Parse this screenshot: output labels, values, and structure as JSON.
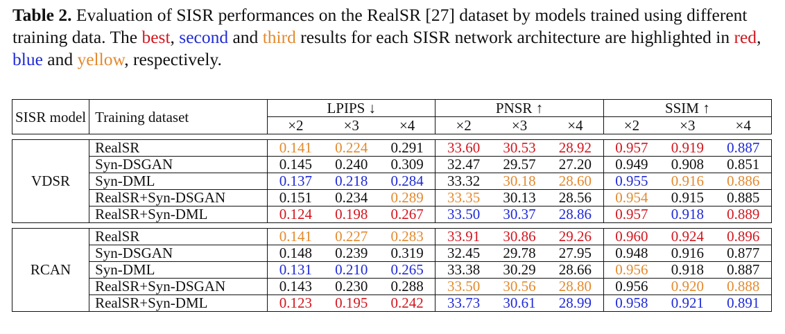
{
  "caption": {
    "label": "Table 2.",
    "text_1": " Evaluation of SISR performances on the RealSR [27] dataset by models trained using different training data. The ",
    "best": "best",
    "text_2": ", ",
    "second": "second",
    "text_3": " and ",
    "third": "third",
    "text_4": " results for each SISR network architecture are highlighted in ",
    "red": "red",
    "text_5": ", ",
    "blue": "blue",
    "text_6": " and ",
    "yellow": "yellow",
    "text_7": ", respectively."
  },
  "colors": {
    "red": "#d2161e",
    "blue": "#1f2ad6",
    "orange": "#e38a2e",
    "black": "#111111"
  },
  "header": {
    "sisr_model": "SISR model",
    "training_dataset": "Training dataset",
    "lpips": "LPIPS ↓",
    "psnr": "PNSR ↑",
    "ssim": "SSIM ↑",
    "scales": [
      "×2",
      "×3",
      "×4",
      "×2",
      "×3",
      "×4",
      "×2",
      "×3",
      "×4"
    ]
  },
  "groups": [
    {
      "model": "VDSR",
      "rows": [
        {
          "dataset": "RealSR",
          "values": [
            "0.141",
            "0.224",
            "0.291",
            "33.60",
            "30.53",
            "28.92",
            "0.957",
            "0.919",
            "0.887"
          ],
          "colors": [
            "orange",
            "orange",
            "black",
            "red",
            "red",
            "red",
            "red",
            "red",
            "blue"
          ]
        },
        {
          "dataset": "Syn-DSGAN",
          "values": [
            "0.145",
            "0.240",
            "0.309",
            "32.47",
            "29.57",
            "27.20",
            "0.949",
            "0.908",
            "0.851"
          ],
          "colors": [
            "black",
            "black",
            "black",
            "black",
            "black",
            "black",
            "black",
            "black",
            "black"
          ]
        },
        {
          "dataset": "Syn-DML",
          "values": [
            "0.137",
            "0.218",
            "0.284",
            "33.32",
            "30.18",
            "28.60",
            "0.955",
            "0.916",
            "0.886"
          ],
          "colors": [
            "blue",
            "blue",
            "blue",
            "black",
            "orange",
            "orange",
            "blue",
            "orange",
            "orange"
          ]
        },
        {
          "dataset": "RealSR+Syn-DSGAN",
          "values": [
            "0.151",
            "0.234",
            "0.289",
            "33.35",
            "30.13",
            "28.56",
            "0.954",
            "0.915",
            "0.885"
          ],
          "colors": [
            "black",
            "black",
            "orange",
            "orange",
            "black",
            "black",
            "orange",
            "black",
            "black"
          ]
        },
        {
          "dataset": "RealSR+Syn-DML",
          "values": [
            "0.124",
            "0.198",
            "0.267",
            "33.50",
            "30.37",
            "28.86",
            "0.957",
            "0.918",
            "0.889"
          ],
          "colors": [
            "red",
            "red",
            "red",
            "blue",
            "blue",
            "blue",
            "red",
            "blue",
            "red"
          ]
        }
      ]
    },
    {
      "model": "RCAN",
      "rows": [
        {
          "dataset": "RealSR",
          "values": [
            "0.141",
            "0.227",
            "0.283",
            "33.91",
            "30.86",
            "29.26",
            "0.960",
            "0.924",
            "0.896"
          ],
          "colors": [
            "orange",
            "orange",
            "orange",
            "red",
            "red",
            "red",
            "red",
            "red",
            "red"
          ]
        },
        {
          "dataset": "Syn-DSGAN",
          "values": [
            "0.148",
            "0.239",
            "0.319",
            "32.45",
            "29.78",
            "27.95",
            "0.948",
            "0.916",
            "0.877"
          ],
          "colors": [
            "black",
            "black",
            "black",
            "black",
            "black",
            "black",
            "black",
            "black",
            "black"
          ]
        },
        {
          "dataset": "Syn-DML",
          "values": [
            "0.131",
            "0.210",
            "0.265",
            "33.38",
            "30.29",
            "28.66",
            "0.956",
            "0.918",
            "0.887"
          ],
          "colors": [
            "blue",
            "blue",
            "blue",
            "black",
            "black",
            "black",
            "orange",
            "black",
            "black"
          ]
        },
        {
          "dataset": "RealSR+Syn-DSGAN",
          "values": [
            "0.143",
            "0.230",
            "0.288",
            "33.50",
            "30.56",
            "28.80",
            "0.956",
            "0.920",
            "0.888"
          ],
          "colors": [
            "black",
            "black",
            "black",
            "orange",
            "orange",
            "orange",
            "black",
            "orange",
            "orange"
          ]
        },
        {
          "dataset": "RealSR+Syn-DML",
          "values": [
            "0.123",
            "0.195",
            "0.242",
            "33.73",
            "30.61",
            "28.99",
            "0.958",
            "0.921",
            "0.891"
          ],
          "colors": [
            "red",
            "red",
            "red",
            "blue",
            "blue",
            "blue",
            "blue",
            "blue",
            "blue"
          ]
        }
      ]
    }
  ]
}
